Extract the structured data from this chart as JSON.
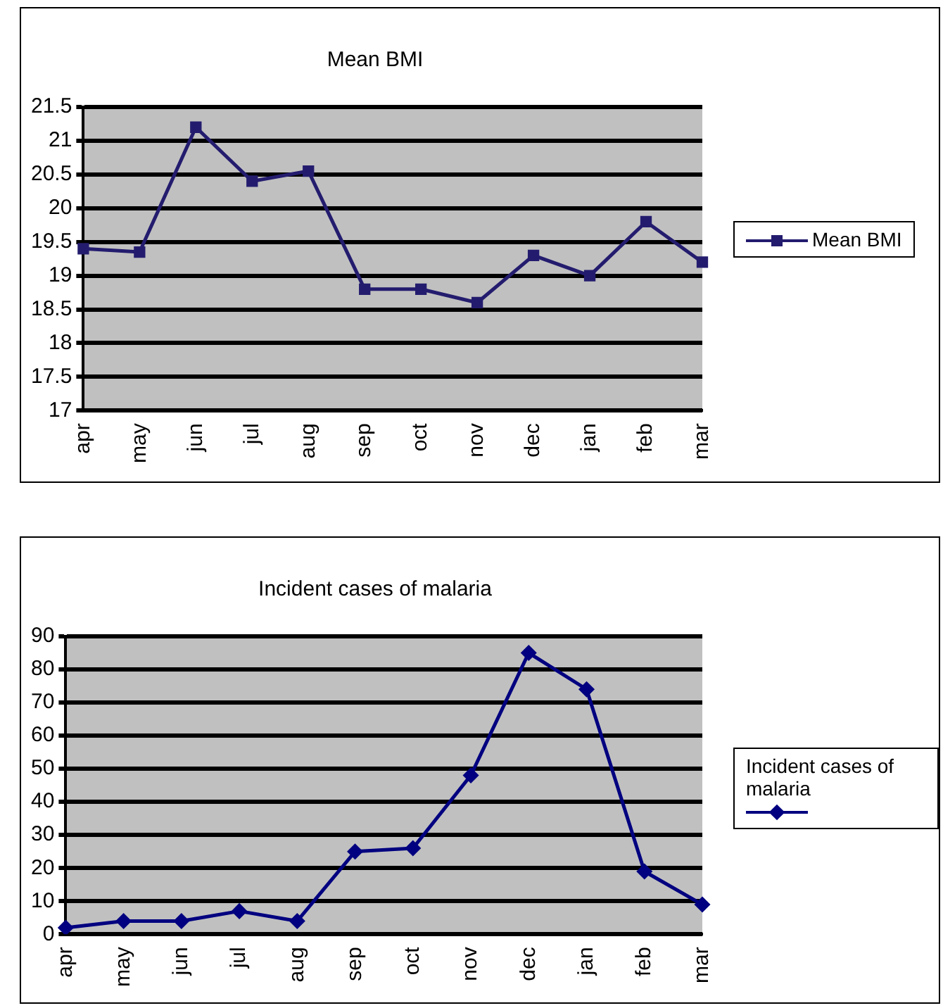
{
  "chart_data": [
    {
      "type": "line",
      "title": "Mean BMI",
      "categories": [
        "apr",
        "may",
        "jun",
        "jul",
        "aug",
        "sep",
        "oct",
        "nov",
        "dec",
        "jan",
        "feb",
        "mar"
      ],
      "series": [
        {
          "name": "Mean BMI",
          "color": "#231c6e",
          "values": [
            19.4,
            19.35,
            21.2,
            20.4,
            20.55,
            18.8,
            18.8,
            18.6,
            19.3,
            19.0,
            19.8,
            19.2
          ]
        }
      ],
      "ylim": [
        17,
        21.5
      ],
      "yticks": [
        17,
        17.5,
        18,
        18.5,
        19,
        19.5,
        20,
        20.5,
        21,
        21.5
      ],
      "grid": "y",
      "legend": "right",
      "marker": "square",
      "line_style": "solid"
    },
    {
      "type": "line",
      "title": "Incident cases of malaria",
      "categories": [
        "apr",
        "may",
        "jun",
        "jul",
        "aug",
        "sep",
        "oct",
        "nov",
        "dec",
        "jan",
        "feb",
        "mar"
      ],
      "series": [
        {
          "name": "Incident cases of malaria",
          "color": "#000080",
          "values": [
            2,
            4,
            4,
            7,
            4,
            25,
            26,
            48,
            85,
            74,
            19,
            9
          ]
        }
      ],
      "ylim": [
        0,
        90
      ],
      "yticks": [
        0,
        10,
        20,
        30,
        40,
        50,
        60,
        70,
        80,
        90
      ],
      "grid": "y",
      "legend": "right",
      "marker": "diamond",
      "line_style": "solid"
    }
  ]
}
